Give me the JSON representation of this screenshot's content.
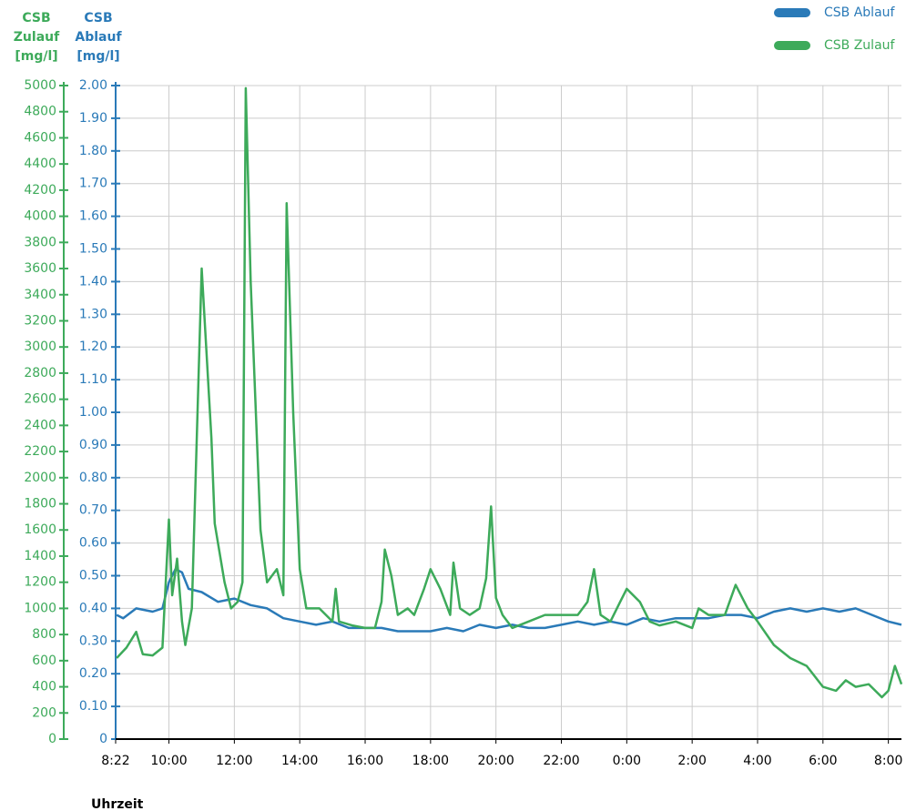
{
  "chart_data": {
    "type": "line",
    "ylabel": [
      "CSB",
      "Ablauf",
      "[mg/l]"
    ],
    "y2label": [
      "CSB",
      "Zulauf",
      "[mg/l]"
    ],
    "xlabel": "Uhrzeit",
    "xlim": [
      8.37,
      32.4
    ],
    "xticks": [
      {
        "value": 8.37,
        "label": "8:22"
      },
      {
        "value": 10,
        "label": "10:00"
      },
      {
        "value": 12,
        "label": "12:00"
      },
      {
        "value": 14,
        "label": "14:00"
      },
      {
        "value": 16,
        "label": "16:00"
      },
      {
        "value": 18,
        "label": "18:00"
      },
      {
        "value": 20,
        "label": "20:00"
      },
      {
        "value": 22,
        "label": "22:00"
      },
      {
        "value": 24,
        "label": "0:00"
      },
      {
        "value": 26,
        "label": "2:00"
      },
      {
        "value": 28,
        "label": "4:00"
      },
      {
        "value": 30,
        "label": "6:00"
      },
      {
        "value": 32,
        "label": "8:00"
      }
    ],
    "ylim": [
      0,
      2
    ],
    "yticks": [
      0,
      {
        "value": 0.1,
        "label": "0.10"
      },
      {
        "value": 0.2,
        "label": "0.20"
      },
      {
        "value": 0.3,
        "label": "0.30"
      },
      {
        "value": 0.4,
        "label": "0.40"
      },
      {
        "value": 0.5,
        "label": "0.50"
      },
      {
        "value": 0.6,
        "label": "0.60"
      },
      {
        "value": 0.7,
        "label": "0.70"
      },
      {
        "value": 0.8,
        "label": "0.80"
      },
      {
        "value": 0.9,
        "label": "0.90"
      },
      {
        "value": 1,
        "label": "1.00"
      },
      {
        "value": 1.1,
        "label": "1.10"
      },
      {
        "value": 1.2,
        "label": "1.20"
      },
      {
        "value": 1.3,
        "label": "1.30"
      },
      {
        "value": 1.4,
        "label": "1.40"
      },
      {
        "value": 1.5,
        "label": "1.50"
      },
      {
        "value": 1.6,
        "label": "1.60"
      },
      {
        "value": 1.7,
        "label": "1.70"
      },
      {
        "value": 1.8,
        "label": "1.80"
      },
      {
        "value": 1.9,
        "label": "1.90"
      },
      {
        "value": 2,
        "label": "2.00"
      }
    ],
    "y2lim": [
      0,
      5000
    ],
    "y2ticks": [
      0,
      200,
      400,
      600,
      800,
      1000,
      1200,
      1400,
      1600,
      1800,
      2000,
      2200,
      2400,
      2600,
      2800,
      3000,
      3200,
      3400,
      3600,
      3800,
      4000,
      4200,
      4400,
      4600,
      4800,
      5000
    ],
    "grid": true,
    "legend": "top-right",
    "series": [
      {
        "name": "CSB Ablauf",
        "color": "#2a7ab8",
        "x": [
          8.4,
          8.6,
          9.0,
          9.5,
          9.8,
          10.0,
          10.2,
          10.4,
          10.6,
          11.0,
          11.5,
          12.0,
          12.5,
          13.0,
          13.5,
          14.0,
          14.5,
          15.0,
          15.5,
          16.0,
          16.5,
          17.0,
          17.5,
          18.0,
          18.5,
          19.0,
          19.5,
          20.0,
          20.5,
          21.0,
          21.5,
          22.0,
          22.5,
          23.0,
          23.5,
          24.0,
          24.5,
          25.0,
          25.5,
          26.0,
          26.5,
          27.0,
          27.5,
          28.0,
          28.5,
          29.0,
          29.5,
          30.0,
          30.5,
          31.0,
          31.5,
          32.0,
          32.4
        ],
        "values": [
          0.38,
          0.37,
          0.4,
          0.39,
          0.4,
          0.48,
          0.52,
          0.51,
          0.46,
          0.45,
          0.42,
          0.43,
          0.41,
          0.4,
          0.37,
          0.36,
          0.35,
          0.36,
          0.34,
          0.34,
          0.34,
          0.33,
          0.33,
          0.33,
          0.34,
          0.33,
          0.35,
          0.34,
          0.35,
          0.34,
          0.34,
          0.35,
          0.36,
          0.35,
          0.36,
          0.35,
          0.37,
          0.36,
          0.37,
          0.37,
          0.37,
          0.38,
          0.38,
          0.37,
          0.39,
          0.4,
          0.39,
          0.4,
          0.39,
          0.4,
          0.38,
          0.36,
          0.35
        ]
      },
      {
        "name": "CSB Zulauf",
        "color": "#3daa5a",
        "axis": "y2",
        "x": [
          8.4,
          8.7,
          9.0,
          9.2,
          9.5,
          9.8,
          10.0,
          10.1,
          10.25,
          10.4,
          10.5,
          10.7,
          11.0,
          11.3,
          11.4,
          11.7,
          11.9,
          12.1,
          12.25,
          12.35,
          12.5,
          12.8,
          13.0,
          13.3,
          13.5,
          13.6,
          13.8,
          14.0,
          14.2,
          14.6,
          15.0,
          15.1,
          15.2,
          15.6,
          16.0,
          16.3,
          16.5,
          16.6,
          16.8,
          17.0,
          17.3,
          17.5,
          17.8,
          18.0,
          18.3,
          18.6,
          18.7,
          18.9,
          19.2,
          19.5,
          19.7,
          19.85,
          20.0,
          20.2,
          20.5,
          21.0,
          21.5,
          22.0,
          22.5,
          22.8,
          23.0,
          23.2,
          23.5,
          23.8,
          24.0,
          24.4,
          24.7,
          25.0,
          25.5,
          26.0,
          26.2,
          26.5,
          27.0,
          27.33,
          27.7,
          28.0,
          28.5,
          29.0,
          29.5,
          30.0,
          30.4,
          30.7,
          31.0,
          31.4,
          31.8,
          32.0,
          32.2,
          32.4
        ],
        "values": [
          620,
          700,
          820,
          650,
          640,
          700,
          1680,
          1100,
          1380,
          900,
          720,
          1000,
          3600,
          2300,
          1650,
          1200,
          1000,
          1050,
          1200,
          4980,
          3500,
          1600,
          1200,
          1300,
          1100,
          4100,
          2500,
          1300,
          1000,
          1000,
          900,
          1150,
          900,
          870,
          850,
          850,
          1050,
          1450,
          1250,
          950,
          1000,
          950,
          1150,
          1300,
          1150,
          950,
          1350,
          1000,
          950,
          1000,
          1230,
          1780,
          1080,
          950,
          850,
          900,
          950,
          950,
          950,
          1050,
          1300,
          950,
          900,
          1050,
          1150,
          1050,
          900,
          870,
          900,
          850,
          1000,
          950,
          950,
          1180,
          1000,
          900,
          720,
          620,
          560,
          400,
          370,
          450,
          400,
          420,
          320,
          370,
          560,
          420
        ]
      }
    ]
  }
}
